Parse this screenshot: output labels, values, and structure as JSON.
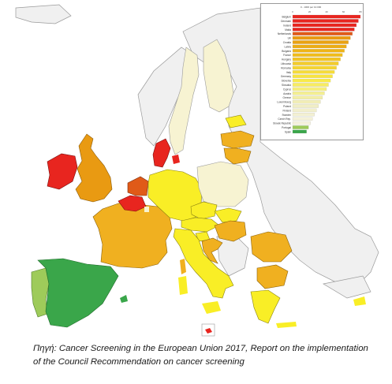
{
  "legend": {
    "scale_label": "0 - 1000 per 10.000",
    "axis_ticks": [
      "0",
      "20",
      "40",
      "60",
      "80"
    ],
    "countries": [
      {
        "name": "Belgium",
        "color": "#e8251f"
      },
      {
        "name": "Denmark",
        "color": "#e8251f"
      },
      {
        "name": "Ireland",
        "color": "#e8251f"
      },
      {
        "name": "Malta",
        "color": "#e8251f"
      },
      {
        "name": "Netherlands",
        "color": "#e05a18"
      },
      {
        "name": "UK",
        "color": "#e99a12"
      },
      {
        "name": "Croatia",
        "color": "#eaa212"
      },
      {
        "name": "Latvia",
        "color": "#ecac14"
      },
      {
        "name": "Bulgaria",
        "color": "#eeb418"
      },
      {
        "name": "France",
        "color": "#f0bc1c"
      },
      {
        "name": "Hungary",
        "color": "#f2c424"
      },
      {
        "name": "Lithuania",
        "color": "#f3cc2c"
      },
      {
        "name": "Romania",
        "color": "#f4d432"
      },
      {
        "name": "Italy",
        "color": "#f6dc3a"
      },
      {
        "name": "Germany",
        "color": "#f8e43e"
      },
      {
        "name": "Slovenia",
        "color": "#f8ea4a"
      },
      {
        "name": "Slovakia",
        "color": "#f8ec62"
      },
      {
        "name": "Cyprus",
        "color": "#f6ee7a"
      },
      {
        "name": "Austria",
        "color": "#f4ef92"
      },
      {
        "name": "Greece",
        "color": "#f2eea6"
      },
      {
        "name": "Luxembourg",
        "color": "#f1edb6"
      },
      {
        "name": "Poland",
        "color": "#f1eec4"
      },
      {
        "name": "Finland",
        "color": "#f2efcc"
      },
      {
        "name": "Sweden",
        "color": "#f3f0d2"
      },
      {
        "name": "Czech Rep.",
        "color": "#f4f1d8"
      },
      {
        "name": "Slovak Republic",
        "color": "#f5f2de"
      },
      {
        "name": "Portugal",
        "color": "#9ecb5a"
      },
      {
        "name": "Spain",
        "color": "#3aa64a"
      }
    ]
  },
  "caption": {
    "line1": "Πηγή: Cancer Screening in the European Union 2017, Report on the implementation",
    "line2": "of the Council Recommendation on cancer screening"
  },
  "colors": {
    "non_eu": "#f0f0f0",
    "border": "#9a9a9a",
    "red": "#e8251f",
    "dark_orange": "#e05a18",
    "orange": "#e99a12",
    "light_orange": "#f0b020",
    "yellow": "#f9ee26",
    "pale_yellow": "#f7f3d2",
    "light_green": "#9ecb5a",
    "green": "#3aa64a"
  }
}
